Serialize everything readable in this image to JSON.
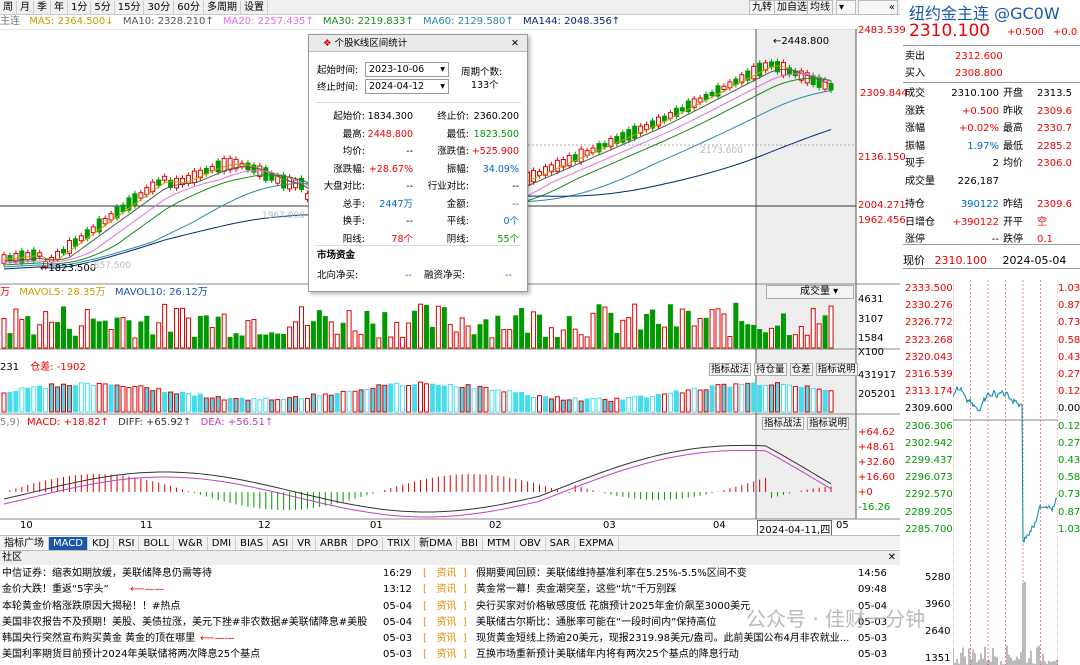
{
  "toolbar": {
    "periods": [
      "周",
      "月",
      "季",
      "年",
      "1分",
      "5分",
      "15分",
      "30分",
      "60分",
      "多周期",
      "设置"
    ],
    "right_buttons": [
      "九转",
      "加自选",
      "均线"
    ]
  },
  "ma_bar": {
    "prefix": "主连",
    "ma5": "MA5: 2364.500↓",
    "ma10": "MA10: 2328.210↑",
    "ma20": "MA20: 2257.435↑",
    "ma30": "MA30: 2219.833↑",
    "ma60": "MA60: 2129.580↑",
    "ma144": "MA144: 2048.356↑"
  },
  "main_chart": {
    "high_label": "2448.800",
    "low_label": "1823.500",
    "faint_label": "1857.500",
    "faint_label2": "2173.600",
    "faint_label3": "1967.900",
    "axis": [
      "2483.539",
      "2309.844",
      "2136.150",
      "2004.271",
      "1962.456"
    ]
  },
  "vol_panel": {
    "header_unit": "万",
    "mavol5": "MAVOL5: 28.35万",
    "mavol10": "MAVOL10: 26.12万",
    "select": "成交量",
    "axis": [
      "4631",
      "3107",
      "1584",
      "X100"
    ]
  },
  "oi_panel": {
    "header": "231",
    "diff": "仓差: -1902",
    "buttons": [
      "指标战法",
      "持仓量",
      "仓差",
      "指标说明"
    ],
    "axis": [
      "431917",
      "205201"
    ]
  },
  "macd_panel": {
    "header_params": "5,9)",
    "macd": "MACD: +18.82↑",
    "diff": "DIFF: +65.92↑",
    "dea": "DEA: +56.51↑",
    "buttons": [
      "指标战法",
      "指标说明"
    ],
    "axis": [
      "+64.62",
      "+48.61",
      "+32.60",
      "+16.60",
      "+0",
      "-16.26"
    ]
  },
  "x_axis": {
    "months": [
      "10",
      "11",
      "12",
      "01",
      "02",
      "03",
      "04",
      "05"
    ],
    "cursor_date": "2024-04-11,四"
  },
  "indicator_tabs": [
    "指标广场",
    "MACD",
    "KDJ",
    "RSI",
    "BOLL",
    "W&R",
    "DMI",
    "BIAS",
    "ASI",
    "VR",
    "ARBR",
    "DPO",
    "TRIX",
    "新DMA",
    "BBI",
    "MTM",
    "OBV",
    "SAR",
    "EXPMA"
  ],
  "news_header": "社区",
  "news_left": [
    {
      "text": "中信证券：缩表如期放缓，美联储降息仍需等待",
      "date": "16:29"
    },
    {
      "text": "金价大跌！重返“5字头”",
      "date": "13:12"
    },
    {
      "text": "本轮黄金价格涨跌原因大揭秘！！#热点",
      "date": "05-04"
    },
    {
      "text": "美国非农报告不及预期！美股、美债拉涨，美元下挫#非农数据#美联储降息#美股",
      "date": "05-04"
    },
    {
      "text": "韩国央行突然宣布购买黄金 黄金的顶在哪里",
      "date": "05-03"
    },
    {
      "text": "美国利率期货目前预计2024年美联储将两次降息25个基点",
      "date": "05-03"
    }
  ],
  "news_right": [
    {
      "tag": "资讯",
      "text": "假期要闻回顾：美联储维持基准利率在5.25%-5.5%区间不变",
      "date": "14:56"
    },
    {
      "tag": "资讯",
      "text": "黄金常一幕！卖金潮突至，这些“坑”千万别踩",
      "date": "09:48"
    },
    {
      "tag": "资讯",
      "text": "央行买家对价格敏感度低 花旗预计2025年金价飙至3000美元",
      "date": "05-04"
    },
    {
      "tag": "资讯",
      "text": "美联储古尔斯比：通胀率可能在“一段时间内”保持高位",
      "date": "05-03"
    },
    {
      "tag": "资讯",
      "text": "现货黄金短线上扬逾20美元，现报2319.98美元/盎司。此前美国公布4月非农就业...",
      "date": "05-03"
    },
    {
      "tag": "资讯",
      "text": "互换市场重新预计美联储年内将有两次25个基点的降息行动",
      "date": "05-03"
    }
  ],
  "dialog": {
    "title": "个股K线区间统计",
    "start_label": "起始时间:",
    "start_value": "2023-10-06",
    "end_label": "终止时间:",
    "end_value": "2024-04-12",
    "period_label": "周期个数:",
    "period_value": "133个",
    "rows": [
      [
        "起始价:",
        "1834.300",
        "终止价:",
        "2360.200"
      ],
      [
        "最高:",
        "2448.800",
        "最低:",
        "1823.500"
      ],
      [
        "均价:",
        "--",
        "涨跌值:",
        "+525.900"
      ],
      [
        "涨跌幅:",
        "+28.67%",
        "振幅:",
        "34.09%"
      ],
      [
        "大盘对比:",
        "--",
        "行业对比:",
        "--"
      ],
      [
        "总手:",
        "2447万",
        "金额:",
        "--"
      ],
      [
        "换手:",
        "--",
        "平线:",
        "0个"
      ],
      [
        "阳线:",
        "78个",
        "阴线:",
        "55个"
      ]
    ],
    "fund_title": "市场资金",
    "fund_rows": [
      "北向净买:",
      "--",
      "融资净买:",
      "--"
    ]
  },
  "quote": {
    "name": "纽约金主连 @GC0W",
    "price": "2310.100",
    "change": "+0.500",
    "pct": "+0.0",
    "sell_label": "卖出",
    "sell": "2312.600",
    "buy_label": "买入",
    "buy": "2308.800",
    "rows": [
      [
        "成交",
        "2310.100",
        "开盘",
        "2313.5"
      ],
      [
        "涨跌",
        "+0.500",
        "昨收",
        "2309.6"
      ],
      [
        "涨幅",
        "+0.02%",
        "最高",
        "2330.7"
      ],
      [
        "振幅",
        "1.97%",
        "最低",
        "2285.2"
      ],
      [
        "现手",
        "2",
        "均价",
        "2306.0"
      ],
      [
        "成交量",
        "226,187",
        "",
        ""
      ],
      [
        "持仓",
        "390122",
        "昨结",
        "2309.6"
      ],
      [
        "日增仓",
        "+390122",
        "开平",
        "空"
      ],
      [
        "涨停",
        "--",
        "跌停",
        "0.1"
      ]
    ],
    "intraday_title": "现价",
    "intraday_price": "2310.100",
    "intraday_date": "2024-05-04",
    "intraday_axis": [
      "2333.500",
      "2330.276",
      "2326.772",
      "2323.268",
      "2320.043",
      "2316.539",
      "2313.174",
      "2309.600",
      "2306.306",
      "2302.942",
      "2299.437",
      "2296.073",
      "2292.570",
      "2289.205",
      "2285.700"
    ],
    "intraday_pct": [
      "1.03%",
      "0.87%",
      "0.73%",
      "0.58%",
      "0.43%",
      "0.27%",
      "0.12%",
      "0.00%",
      "0.12%",
      "0.27%",
      "0.43%",
      "0.58%",
      "0.73%",
      "0.87%",
      "1.03%"
    ],
    "intraday_vol": [
      "5280",
      "3960",
      "2640",
      "1351"
    ]
  },
  "watermark": "公众号 · 佳财一分钟",
  "colors": {
    "up": "#e00000",
    "down": "#009900",
    "bg": "#ffffff",
    "accent": "#1a57a8",
    "oi": "#44ddee"
  }
}
